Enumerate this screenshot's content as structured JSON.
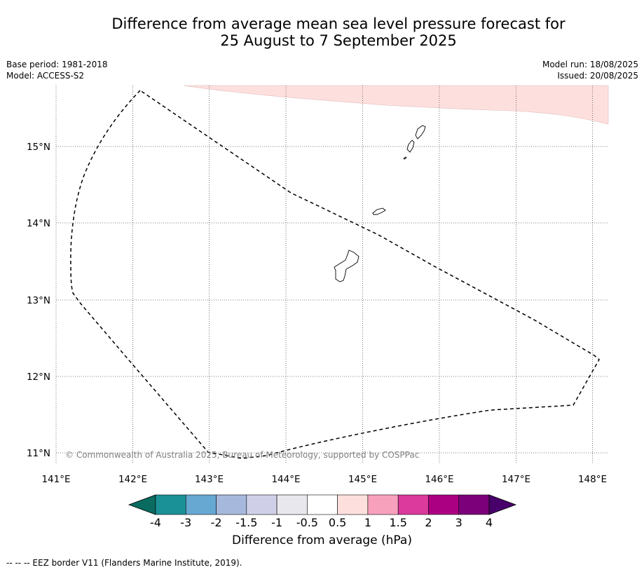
{
  "title_line1": "Difference from average mean sea level pressure forecast for",
  "title_line2": "25 August to 7 September 2025",
  "meta_left": [
    "Base period: 1981-2018",
    "Model: ACCESS-S2"
  ],
  "meta_right": [
    "Model run: 18/08/2025",
    "Issued: 20/08/2025"
  ],
  "map": {
    "lat_labels": [
      "15°N",
      "14°N",
      "13°N",
      "12°N",
      "11°N"
    ],
    "lon_labels": [
      "141°E",
      "142°E",
      "143°E",
      "144°E",
      "145°E",
      "146°E",
      "147°E",
      "148°E"
    ],
    "copyright": "© Commonwealth of Australia 2025, Bureau of Meteorology, supported by COSPPac",
    "anomaly_fill_color": "#fde0de",
    "eez_line_color": "#000000"
  },
  "colorbar": {
    "ticks": [
      "-4",
      "-3",
      "-2",
      "-1.5",
      "-1",
      "-0.5",
      "0.5",
      "1",
      "1.5",
      "2",
      "3",
      "4"
    ],
    "colors": {
      "extend_low": "#0a6b60",
      "bins": [
        "#1a9196",
        "#67a8d3",
        "#a6b9dc",
        "#cfd0e8",
        "#e9e7ee",
        "#ffffff",
        "#fde0de",
        "#f8a1bd",
        "#dc3a9c",
        "#ac0083",
        "#7b007a"
      ],
      "extend_high": "#48006a"
    },
    "label": "Difference from average (hPa)"
  },
  "footer": "--  --  -- EEZ border V11 (Flanders Marine Institute, 2019)."
}
